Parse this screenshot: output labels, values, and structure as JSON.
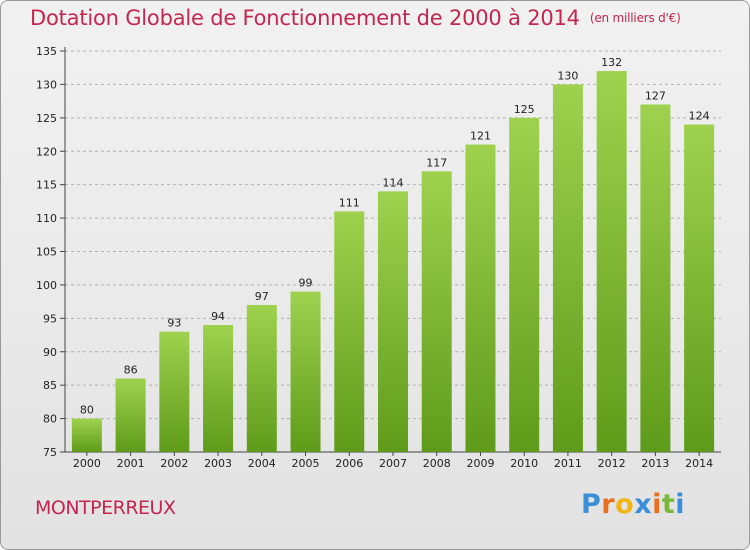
{
  "header": {
    "title": "Dotation Globale de Fonctionnement de 2000 à 2014",
    "unit": "(en milliers d'€)"
  },
  "footer": {
    "city": "MONTPERREUX",
    "logo": {
      "text": "Proxiti",
      "letters": [
        "P",
        "r",
        "o",
        "x",
        "i",
        "t",
        "i"
      ],
      "colors": [
        "#3a8fd8",
        "#e8701e",
        "#f2b516",
        "#3a8fd8",
        "#e8701e",
        "#7ab83a",
        "#3a8fd8"
      ]
    }
  },
  "colors": {
    "title": "#c4264f",
    "bar_light": "#9ed24e",
    "bar_dark": "#5f9b1a",
    "grid": "#b0b0b0"
  },
  "chart_data": {
    "type": "bar",
    "title": "Dotation Globale de Fonctionnement de 2000 à 2014",
    "xlabel": "",
    "ylabel": "",
    "categories": [
      "2000",
      "2001",
      "2002",
      "2003",
      "2004",
      "2005",
      "2006",
      "2007",
      "2008",
      "2009",
      "2010",
      "2011",
      "2012",
      "2013",
      "2014"
    ],
    "values": [
      80,
      86,
      93,
      94,
      97,
      99,
      111,
      114,
      117,
      121,
      125,
      130,
      132,
      127,
      124
    ],
    "ylim": [
      75,
      135
    ],
    "yticks": [
      75,
      80,
      85,
      90,
      95,
      100,
      105,
      110,
      115,
      120,
      125,
      130,
      135
    ],
    "grid": "horizontal dashed",
    "legend": "none"
  }
}
